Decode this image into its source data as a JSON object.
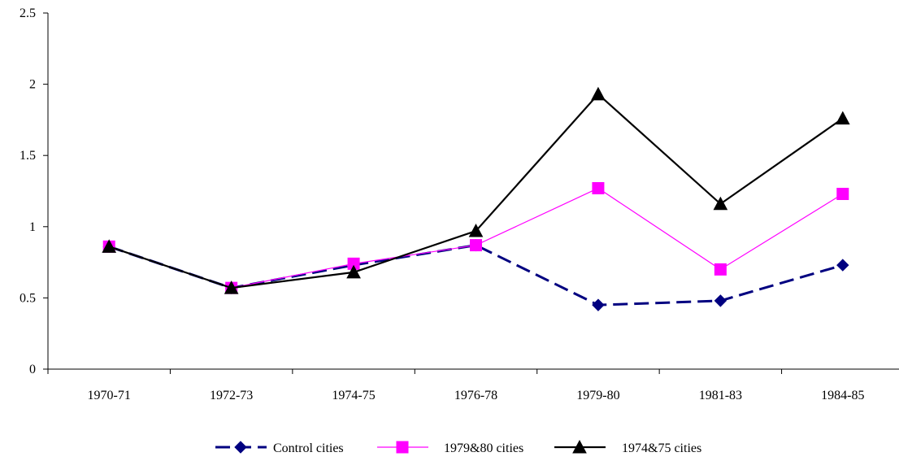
{
  "chart_data": {
    "type": "line",
    "title": "",
    "xlabel": "",
    "ylabel": "",
    "categories": [
      "1970-71",
      "1972-73",
      "1974-75",
      "1976-78",
      "1979-80",
      "1981-83",
      "1984-85"
    ],
    "ylim": [
      0,
      2.5
    ],
    "yticks": [
      "0",
      "0.5",
      "1",
      "1.5",
      "2",
      "2.5"
    ],
    "grid": false,
    "legend_position": "bottom",
    "series": [
      {
        "name": "Control cities",
        "values": [
          0.86,
          0.57,
          0.73,
          0.87,
          0.45,
          0.48,
          0.73
        ],
        "color": "#000080",
        "marker": "diamond",
        "dash": "dashed"
      },
      {
        "name": "1979&80 cities",
        "values": [
          0.86,
          0.57,
          0.74,
          0.87,
          1.27,
          0.7,
          1.23
        ],
        "color": "#FF00FF",
        "marker": "square",
        "dash": "solid"
      },
      {
        "name": "1974&75 cities",
        "values": [
          0.86,
          0.57,
          0.68,
          0.97,
          1.93,
          1.16,
          1.76
        ],
        "color": "#000000",
        "marker": "triangle",
        "dash": "solid"
      }
    ]
  }
}
